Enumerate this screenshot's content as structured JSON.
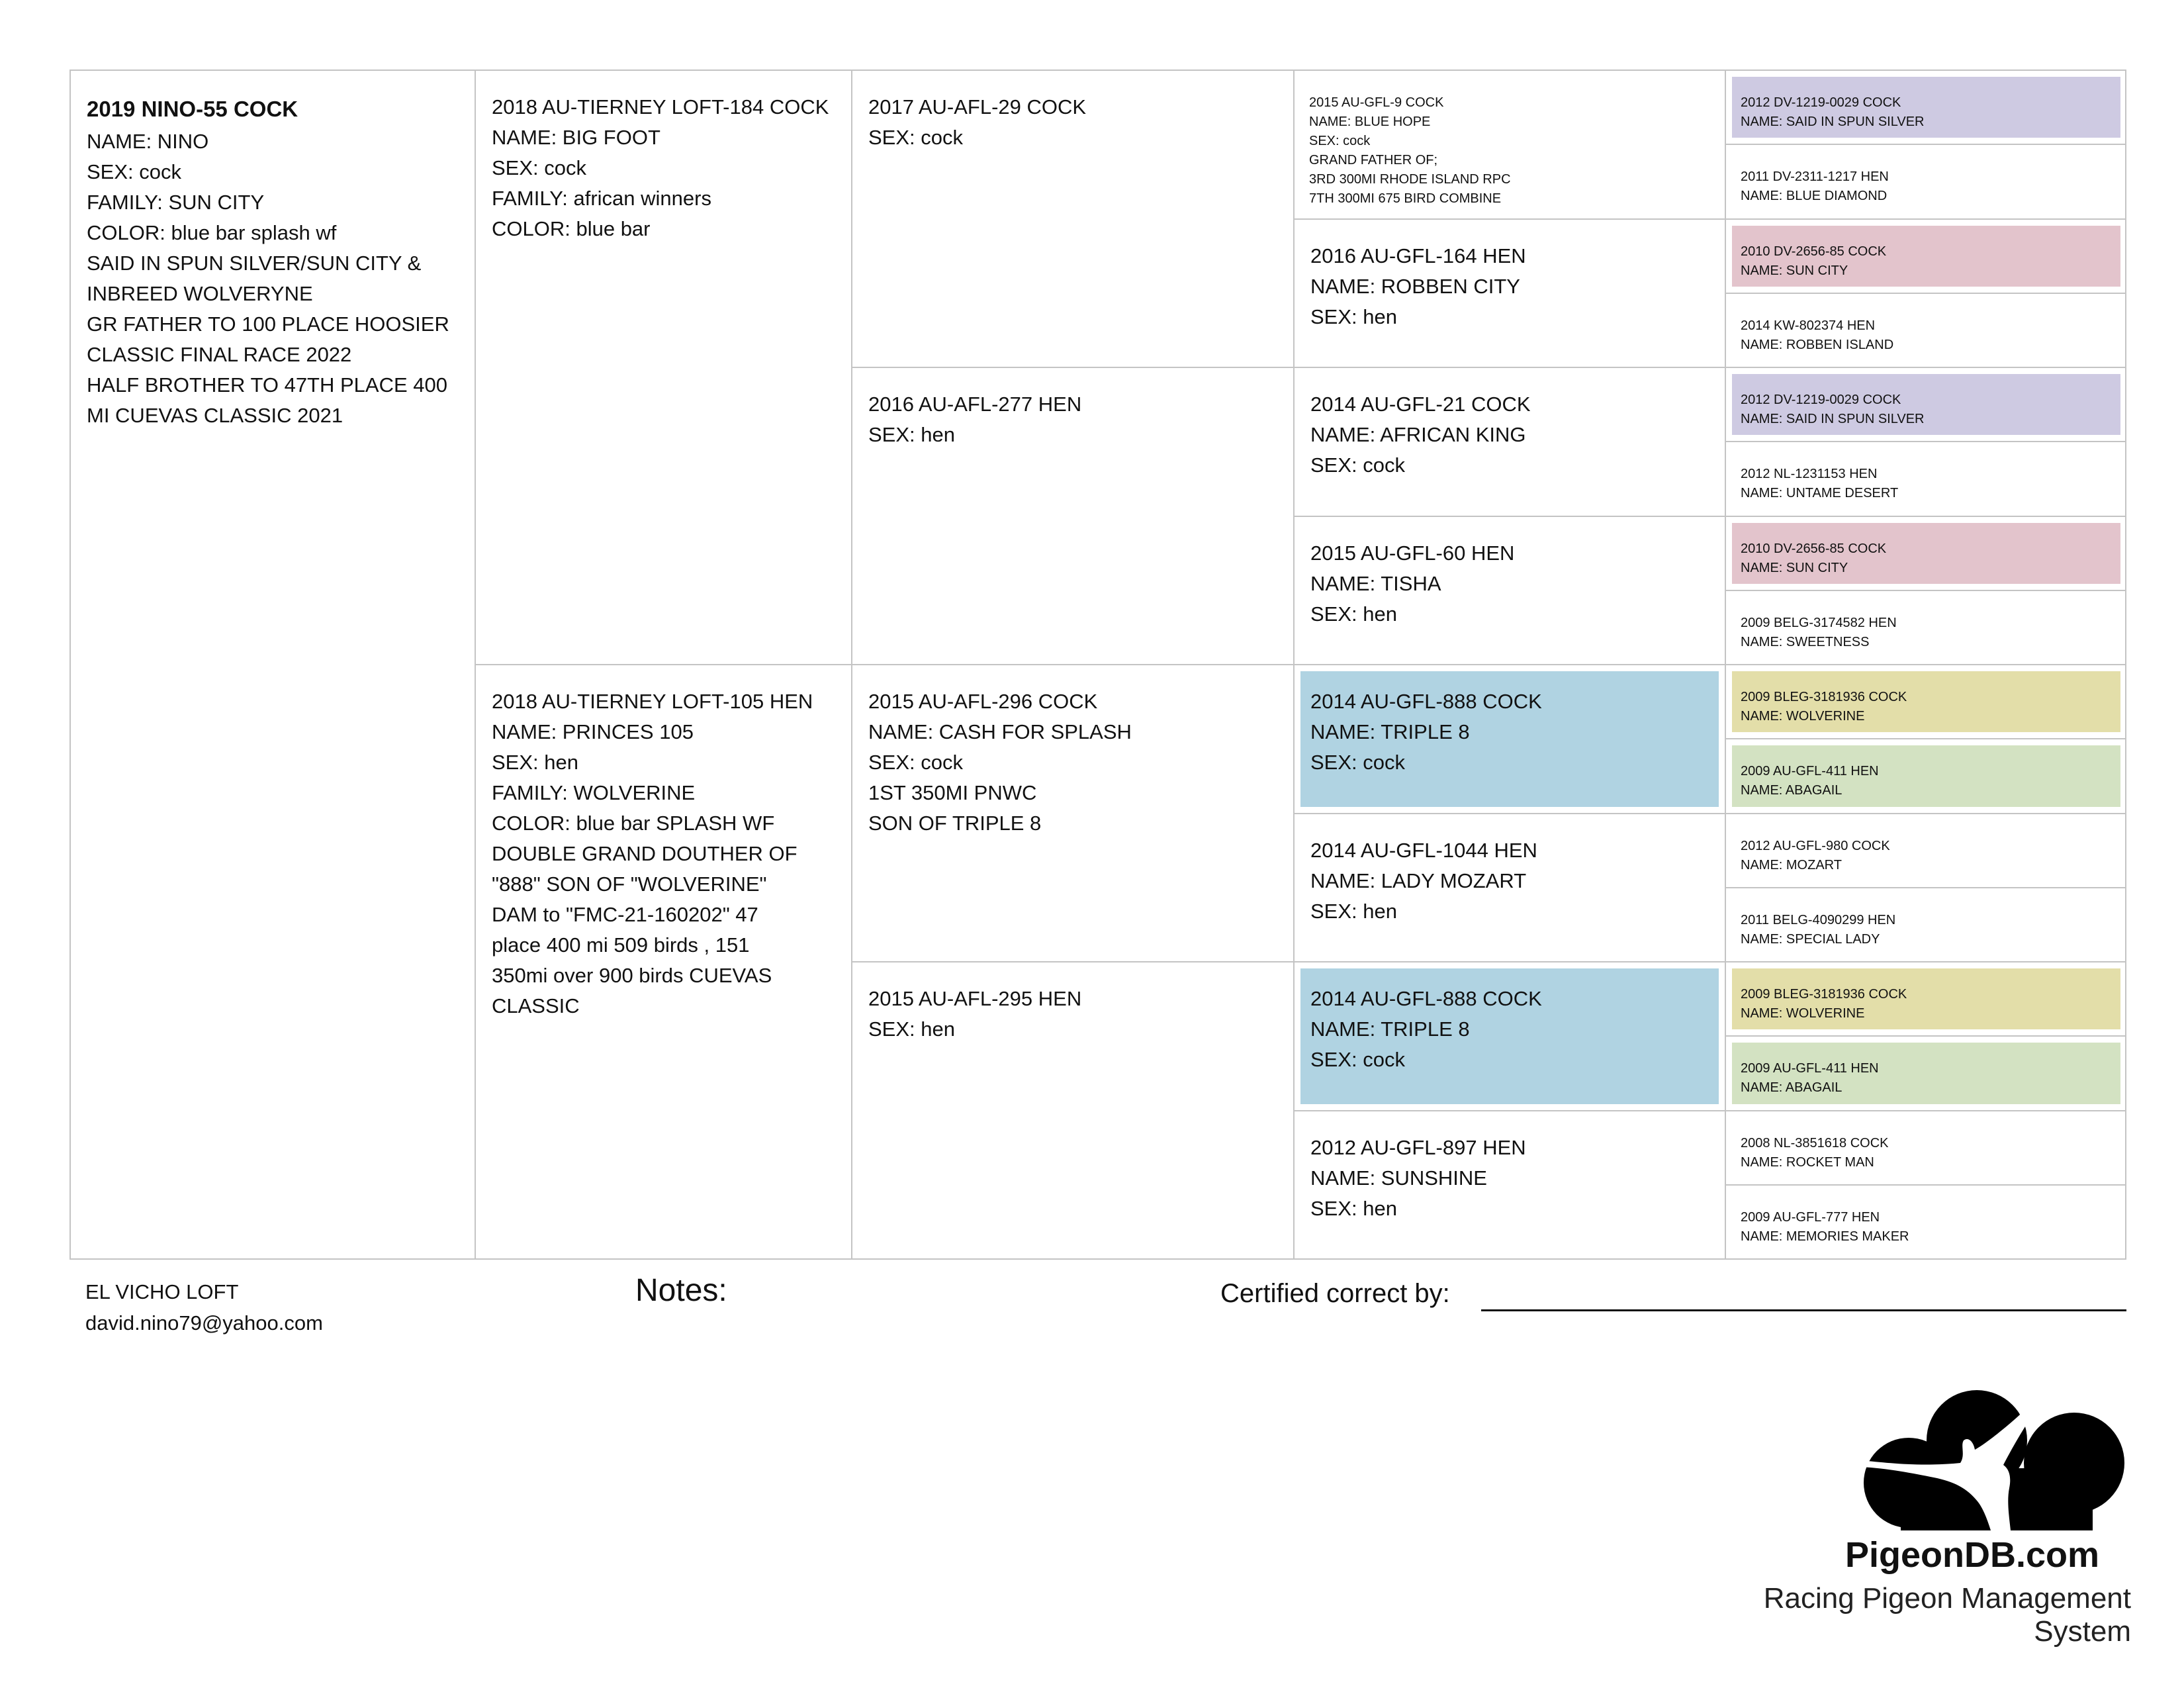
{
  "pedigree": {
    "generations": [
      [
        {
          "lines": [
            "2019 NINO-55 COCK",
            "NAME: NINO",
            "SEX: cock",
            "FAMILY: SUN CITY",
            "COLOR: blue bar splash wf",
            "SAID IN SPUN SILVER/SUN CITY &",
            "INBREED WOLVERYNE",
            "GR FATHER TO 100 PLACE HOOSIER",
            "CLASSIC FINAL RACE 2022",
            "HALF BROTHER TO 47TH PLACE 400",
            "MI CUEVAS CLASSIC 2021"
          ],
          "bold_first": true
        }
      ],
      [
        {
          "lines": [
            "2018 AU-TIERNEY LOFT-184 COCK",
            "NAME: BIG FOOT",
            "SEX: cock",
            "FAMILY: african winners",
            "COLOR: blue bar"
          ]
        },
        {
          "lines": [
            "2018 AU-TIERNEY LOFT-105 HEN",
            "NAME: PRINCES 105",
            "SEX: hen",
            "FAMILY: WOLVERINE",
            "COLOR: blue bar SPLASH WF",
            "DOUBLE GRAND DOUTHER OF",
            "\"888\" SON OF \"WOLVERINE\"",
            "DAM to  \"FMC-21-160202\" 47",
            "place 400 mi 509 birds , 151",
            "350mi over 900 birds CUEVAS",
            "CLASSIC"
          ]
        }
      ],
      [
        {
          "lines": [
            "2017 AU-AFL-29 COCK",
            "SEX: cock"
          ]
        },
        {
          "lines": [
            "2016 AU-AFL-277 HEN",
            "SEX: hen"
          ]
        },
        {
          "lines": [
            "2015 AU-AFL-296 COCK",
            "NAME: CASH FOR SPLASH",
            "SEX: cock",
            "1ST 350MI PNWC",
            "SON OF TRIPLE 8"
          ]
        },
        {
          "lines": [
            "2015 AU-AFL-295 HEN",
            "SEX: hen"
          ]
        }
      ],
      [
        {
          "lines": [
            "2015 AU-GFL-9 COCK",
            "NAME: BLUE HOPE",
            "SEX: cock",
            "GRAND FATHER OF;",
            "3RD 300MI RHODE ISLAND RPC",
            "7TH 300MI 675 BIRD COMBINE"
          ],
          "small": true
        },
        {
          "lines": [
            "2016 AU-GFL-164 HEN",
            "NAME: ROBBEN CITY",
            "SEX: hen"
          ]
        },
        {
          "lines": [
            "2014 AU-GFL-21 COCK",
            "NAME: AFRICAN KING",
            "SEX: cock"
          ]
        },
        {
          "lines": [
            "2015 AU-GFL-60 HEN",
            "NAME: TISHA",
            "SEX: hen"
          ]
        },
        {
          "lines": [
            "2014 AU-GFL-888 COCK",
            "NAME: TRIPLE 8",
            "SEX: cock"
          ],
          "color": "#b0d3e2"
        },
        {
          "lines": [
            "2014 AU-GFL-1044 HEN",
            "NAME: LADY MOZART",
            "SEX: hen"
          ]
        },
        {
          "lines": [
            "2014 AU-GFL-888 COCK",
            "NAME: TRIPLE 8",
            "SEX: cock"
          ],
          "color": "#b0d3e2"
        },
        {
          "lines": [
            "2012 AU-GFL-897 HEN",
            "NAME: SUNSHINE",
            "SEX: hen"
          ]
        }
      ],
      [
        {
          "lines": [
            "2012 DV-1219-0029 COCK",
            "NAME: SAID IN SPUN SILVER"
          ],
          "small": true,
          "color": "#cecae2"
        },
        {
          "lines": [
            "2011 DV-2311-1217 HEN",
            "NAME: BLUE DIAMOND"
          ],
          "small": true
        },
        {
          "lines": [
            "2010 DV-2656-85 COCK",
            "NAME: SUN CITY"
          ],
          "small": true,
          "color": "#e3c4cc"
        },
        {
          "lines": [
            "2014 KW-802374 HEN",
            "NAME: ROBBEN ISLAND"
          ],
          "small": true
        },
        {
          "lines": [
            "2012 DV-1219-0029 COCK",
            "NAME: SAID IN SPUN SILVER"
          ],
          "small": true,
          "color": "#cecae2"
        },
        {
          "lines": [
            "2012 NL-1231153 HEN",
            "NAME: UNTAME DESERT"
          ],
          "small": true
        },
        {
          "lines": [
            "2010 DV-2656-85 COCK",
            "NAME: SUN CITY"
          ],
          "small": true,
          "color": "#e3c4cc"
        },
        {
          "lines": [
            "2009 BELG-3174582 HEN",
            "NAME: SWEETNESS"
          ],
          "small": true
        },
        {
          "lines": [
            "2009 BLEG-3181936 COCK",
            "NAME: WOLVERINE"
          ],
          "small": true,
          "color": "#e3dea9"
        },
        {
          "lines": [
            "2009 AU-GFL-411 HEN",
            "NAME: ABAGAIL"
          ],
          "small": true,
          "color": "#d3e2c2"
        },
        {
          "lines": [
            "2012 AU-GFL-980 COCK",
            "NAME: MOZART"
          ],
          "small": true
        },
        {
          "lines": [
            "2011 BELG-4090299 HEN",
            "NAME: SPECIAL LADY"
          ],
          "small": true
        },
        {
          "lines": [
            "2009 BLEG-3181936 COCK",
            "NAME: WOLVERINE"
          ],
          "small": true,
          "color": "#e3dea9"
        },
        {
          "lines": [
            "2009 AU-GFL-411 HEN",
            "NAME: ABAGAIL"
          ],
          "small": true,
          "color": "#d3e2c2"
        },
        {
          "lines": [
            "2008 NL-3851618 COCK",
            "NAME: ROCKET MAN"
          ],
          "small": true
        },
        {
          "lines": [
            "2009 AU-GFL-777 HEN",
            "NAME: MEMORIES MAKER"
          ],
          "small": true
        }
      ]
    ]
  },
  "footer": {
    "loft_name": "EL VICHO LOFT",
    "email": "david.nino79@yahoo.com",
    "notes_label": "Notes:",
    "certified_label": "Certified correct by:"
  },
  "branding": {
    "logo_icon": "cloud-pigeon-logo-icon",
    "title": "PigeonDB.com",
    "subtitle": "Racing Pigeon Management System"
  }
}
